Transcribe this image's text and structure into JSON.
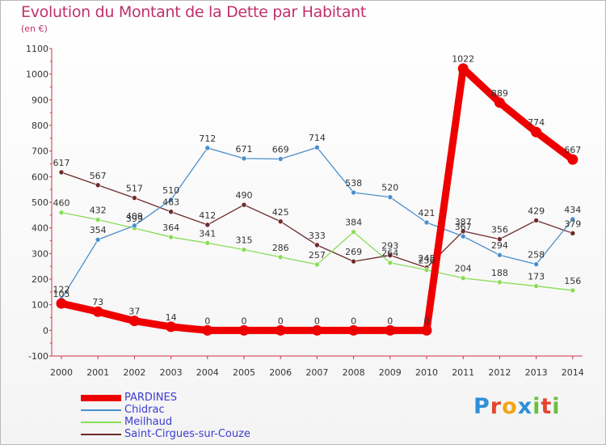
{
  "title": "Evolution du Montant de la Dette par Habitant",
  "subtitle": "(en €)",
  "logo": {
    "letters": [
      "P",
      "r",
      "o",
      "x",
      "i",
      "t",
      "i"
    ],
    "colors": [
      "#2f8fd8",
      "#e2452f",
      "#f2a516",
      "#2f8fd8",
      "#6abf3b",
      "#e2452f",
      "#6abf3b"
    ]
  },
  "chart_data": {
    "type": "line",
    "x": [
      "2000",
      "2001",
      "2002",
      "2003",
      "2004",
      "2005",
      "2006",
      "2007",
      "2008",
      "2009",
      "2010",
      "2011",
      "2012",
      "2013",
      "2014"
    ],
    "ylim": [
      -100,
      1100
    ],
    "yticks": [
      "-100",
      "0",
      "100",
      "200",
      "300",
      "400",
      "500",
      "600",
      "700",
      "800",
      "900",
      "1000",
      "1100"
    ],
    "grid": false,
    "legend_position": "bottom-left",
    "series": [
      {
        "name": "PARDINES",
        "color": "#ee0000",
        "values": [
          105,
          73,
          37,
          14,
          0,
          0,
          0,
          0,
          0,
          0,
          0,
          1022,
          889,
          774,
          667
        ],
        "labels": [
          "105",
          "73",
          "37",
          "14",
          "0",
          "0",
          "0",
          "0",
          "0",
          "0",
          "0",
          "1022",
          "889",
          "774",
          "667"
        ]
      },
      {
        "name": "Chidrac",
        "color": "#4a8fcc",
        "values": [
          122,
          354,
          409,
          510,
          712,
          671,
          669,
          714,
          538,
          520,
          421,
          367,
          294,
          258,
          434
        ],
        "labels": [
          "122",
          "354",
          "409",
          "510",
          "712",
          "671",
          "669",
          "714",
          "538",
          "520",
          "421",
          "367",
          "294",
          "258",
          "434"
        ]
      },
      {
        "name": "Meilhaud",
        "color": "#88dd55",
        "values": [
          460,
          432,
          399,
          364,
          341,
          315,
          286,
          257,
          384,
          264,
          236,
          204,
          188,
          173,
          156
        ],
        "labels": [
          "460",
          "432",
          "399",
          "364",
          "341",
          "315",
          "286",
          "257",
          "384",
          "264",
          "236",
          "204",
          "188",
          "173",
          "156"
        ]
      },
      {
        "name": "Saint-Cirgues-sur-Couze",
        "color": "#6e2a2a",
        "values": [
          617,
          567,
          517,
          463,
          412,
          490,
          425,
          333,
          269,
          293,
          245,
          387,
          356,
          429,
          379
        ],
        "labels": [
          "617",
          "567",
          "517",
          "463",
          "412",
          "490",
          "425",
          "333",
          "269",
          "293",
          "245",
          "387",
          "356",
          "429",
          "379"
        ]
      }
    ]
  }
}
